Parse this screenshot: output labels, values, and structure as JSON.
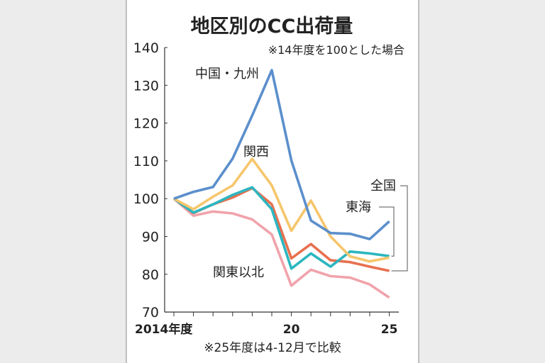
{
  "chart_data": {
    "type": "line",
    "title": "地区別のCC出荷量",
    "subtitle": "※14年度を100とした場合",
    "footnote": "※25年度は4-12月で比較",
    "xlabel": "",
    "ylabel": "",
    "x": [
      2014,
      2015,
      2016,
      2017,
      2018,
      2019,
      2020,
      2021,
      2022,
      2023,
      2024,
      2025
    ],
    "x_tick_labels": [
      {
        "x": 2014,
        "label": "2014年度"
      },
      {
        "x": 2020,
        "label": "20"
      },
      {
        "x": 2025,
        "label": "25"
      }
    ],
    "ylim": [
      70,
      140
    ],
    "y_ticks": [
      70,
      80,
      90,
      100,
      110,
      120,
      130,
      140
    ],
    "grid": false,
    "series": [
      {
        "name": "中国・九州",
        "color": "#5b8fcc",
        "values": [
          100,
          101.8,
          103.1,
          110.6,
          122,
          134,
          110.1,
          94.2,
          90.9,
          90.7,
          89.3,
          94
        ]
      },
      {
        "name": "関西",
        "color": "#f6c66c",
        "values": [
          100,
          97.2,
          100.5,
          103.5,
          110.5,
          103.5,
          91.5,
          99.5,
          90,
          84.7,
          83.4,
          84.4
        ]
      },
      {
        "name": "東海",
        "color": "#2cb6c0",
        "values": [
          100,
          96.3,
          98.5,
          101,
          103,
          97.2,
          81.5,
          85.5,
          82,
          86,
          85.5,
          84.8
        ]
      },
      {
        "name": "全国",
        "color": "#e8704f",
        "values": [
          100,
          96.2,
          98.5,
          100.3,
          102.8,
          98.5,
          84.2,
          88,
          83.7,
          83.2,
          82,
          80.9
        ]
      },
      {
        "name": "関東以北",
        "color": "#f0a3ab",
        "values": [
          100,
          95.5,
          96.6,
          96.1,
          94.5,
          90.5,
          77,
          81.2,
          79.5,
          79.1,
          77.3,
          73.8
        ]
      }
    ]
  }
}
